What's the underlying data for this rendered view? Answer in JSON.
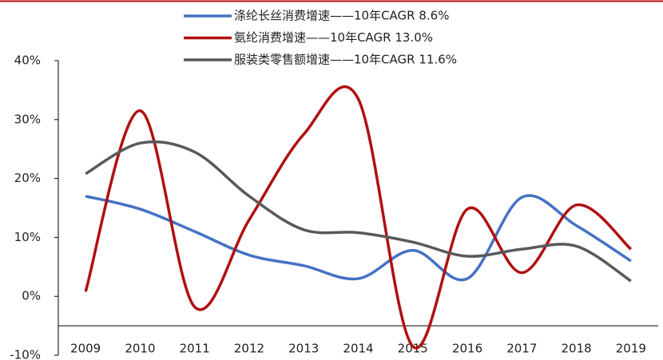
{
  "chart_data": {
    "type": "line",
    "categories": [
      "2009",
      "2010",
      "2011",
      "2012",
      "2013",
      "2014",
      "2015",
      "2016",
      "2017",
      "2018",
      "2019"
    ],
    "series": [
      {
        "name": "涤纶长丝消费增速——10年CAGR 8.6%",
        "color": "#4472c4",
        "values": [
          17,
          14.8,
          11,
          7,
          5.2,
          3,
          7.8,
          3,
          16.8,
          12,
          6
        ]
      },
      {
        "name": "氨纶消费增速——10年CAGR 13.0%",
        "color": "#b01010",
        "values": [
          0.8,
          31.5,
          -1.8,
          13,
          27.5,
          33.5,
          -8.5,
          14.8,
          4,
          15.5,
          8
        ]
      },
      {
        "name": "服装类零售额增速——10年CAGR 11.6%",
        "color": "#595959",
        "values": [
          20.8,
          26,
          24.5,
          17,
          11.3,
          10.8,
          9.2,
          6.8,
          8,
          8.5,
          2.6
        ]
      }
    ],
    "ylim": [
      -10,
      40
    ],
    "yticks": [
      {
        "value": -10,
        "label": "-10%"
      },
      {
        "value": 0,
        "label": "0%"
      },
      {
        "value": 10,
        "label": "10%"
      },
      {
        "value": 20,
        "label": "20%"
      },
      {
        "value": 30,
        "label": "30%"
      },
      {
        "value": 40,
        "label": "40%"
      }
    ],
    "x_axis_crossing": -5,
    "smooth": true,
    "legend": "top"
  }
}
